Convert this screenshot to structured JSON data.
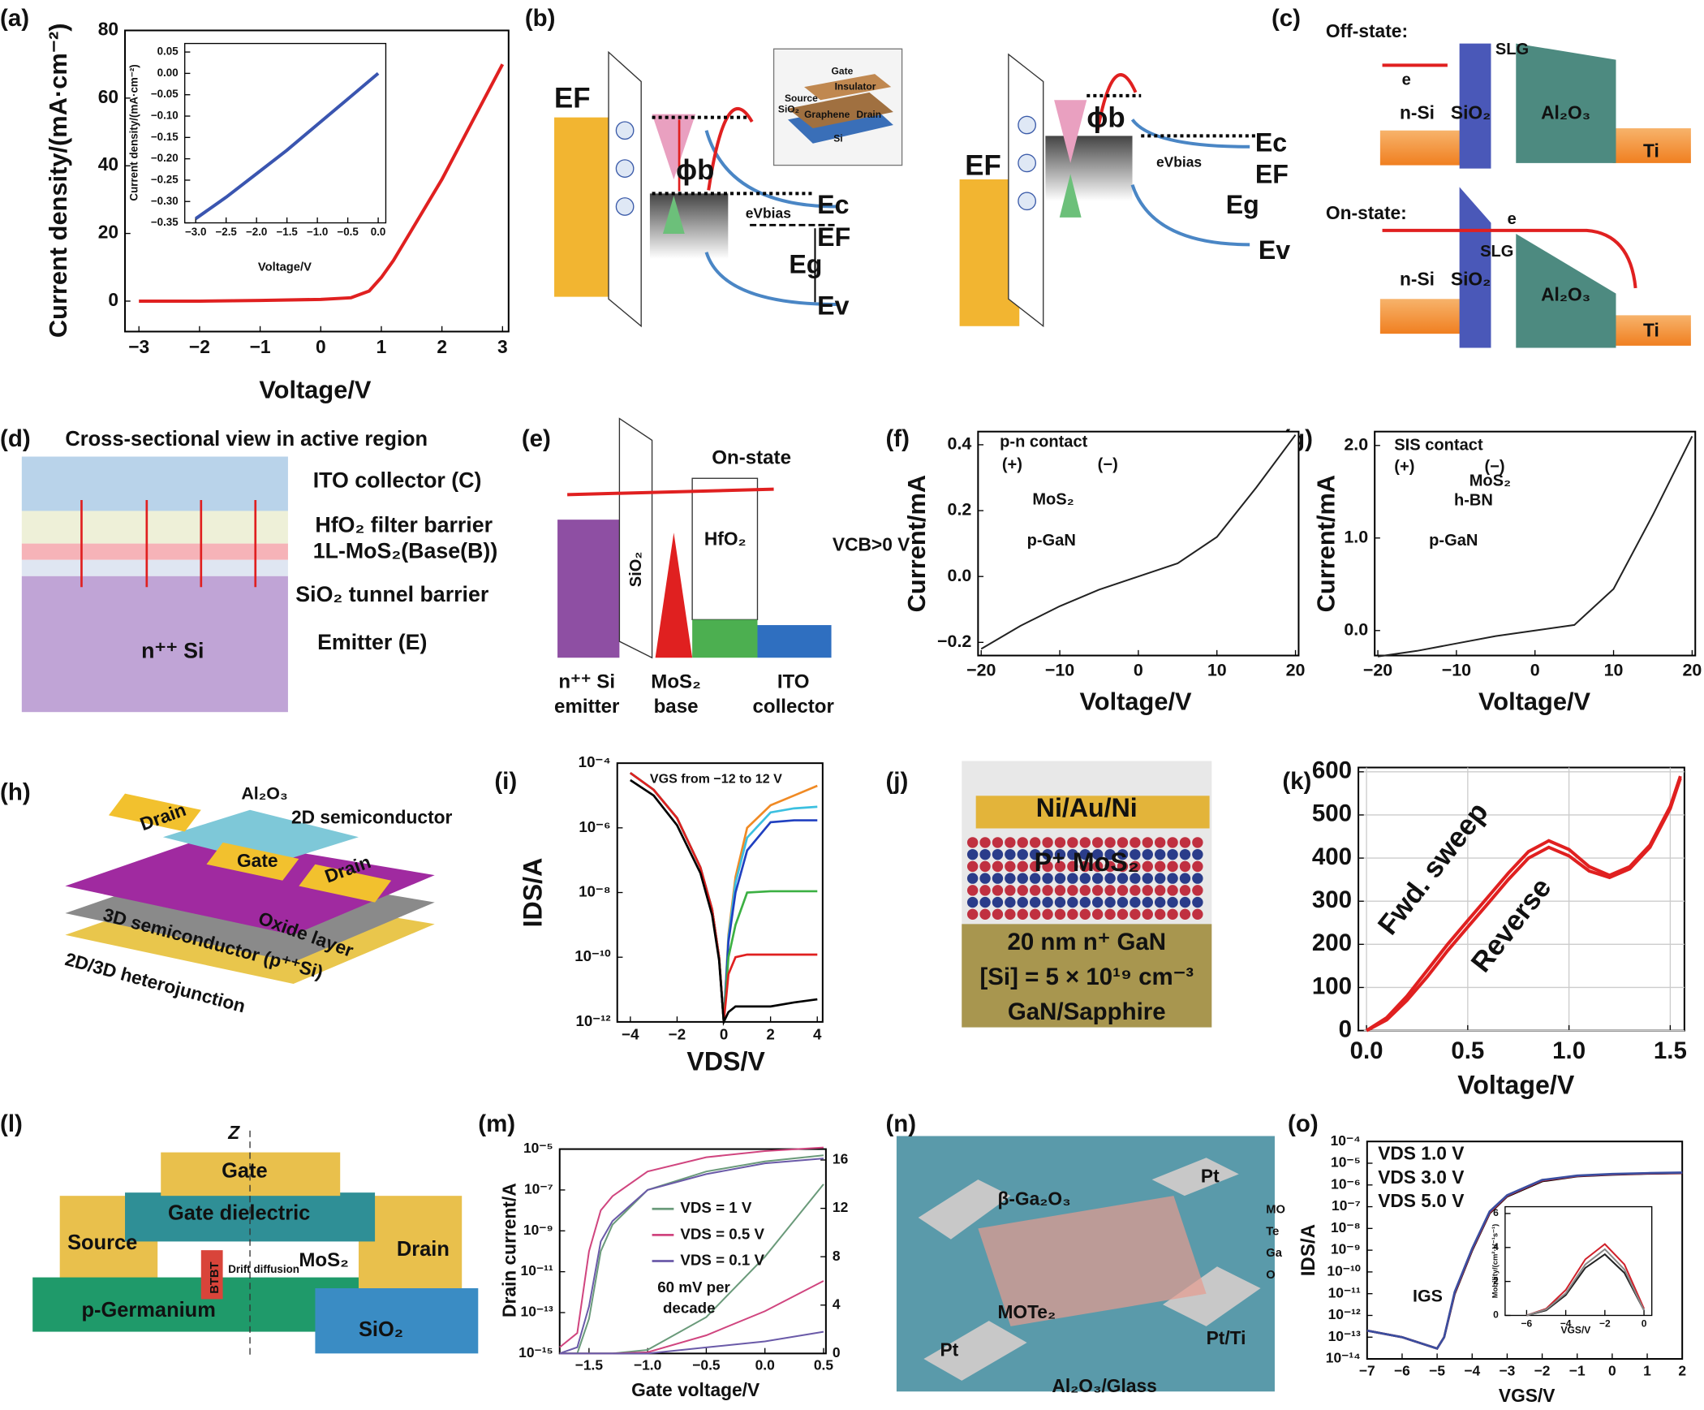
{
  "panels": [
    "(a)",
    "(b)",
    "(c)",
    "(d)",
    "(e)",
    "(f)",
    "(g)",
    "(h)",
    "(i)",
    "(j)",
    "(k)",
    "(l)",
    "(m)",
    "(n)",
    "(o)"
  ],
  "diagrams": {
    "b": [
      "EF",
      "ϕb",
      "eVbias",
      "Ec",
      "EF",
      "Eg",
      "Ev",
      "Gate",
      "Insulator",
      "Source",
      "SiO₂",
      "Graphene",
      "Drain",
      "Si",
      "EF",
      "ϕb",
      "Ec",
      "eVbias",
      "EF",
      "Eg",
      "Ev"
    ],
    "c": [
      "Off-state:",
      "e",
      "SLG",
      "n-Si",
      "SiO₂",
      "Al₂O₃",
      "Ti",
      "On-state:",
      "e",
      "SLG",
      "n-Si",
      "SiO₂",
      "Al₂O₃",
      "Ti"
    ],
    "d": [
      "Cross-sectional view in active region",
      "ITO collector (C)",
      "HfO₂ filter barrier",
      "1L-MoS₂(Base(B))",
      "SiO₂ tunnel barrier",
      "n⁺⁺ Si",
      "Emitter (E)"
    ],
    "e": [
      "On-state",
      "SiO₂",
      "HfO₂",
      "VCB>0 V",
      "n⁺⁺ Si",
      "emitter",
      "MoS₂",
      "base",
      "ITO",
      "collector"
    ],
    "h": [
      "Al₂O₃",
      "2D semiconductor",
      "Drain",
      "Gate",
      "Drain",
      "Oxide layer",
      "3D semiconductor (p⁺⁺Si)",
      "2D/3D heterojunction"
    ],
    "j": [
      "Ni/Au/Ni",
      "P⁺ MoS₂",
      "20 nm    n⁺ GaN",
      "[Si] = 5 × 10¹⁹ cm⁻³",
      "GaN/Sapphire"
    ],
    "l": [
      "Z",
      "Gate",
      "Gate dielectric",
      "Source",
      "Drain",
      "MoS₂",
      "BTBT",
      "Drift diffusion",
      "p-Germanium",
      "SiO₂"
    ],
    "n": [
      "Pt",
      "β-Ga₂O₃",
      "MO",
      "Te",
      "Ga",
      "O",
      "MOTe₂",
      "Pt",
      "Pt/Ti",
      "Al₂O₃/Glass"
    ]
  },
  "chart_data": [
    {
      "type": "line",
      "xlabel": "Voltage/V",
      "ylabel": "Current density/(mA·cm⁻²)",
      "xlim": [
        -3.23,
        3.1
      ],
      "ylim": [
        -9,
        80
      ],
      "xticks": [
        {
          "value": -3,
          "label": "−3"
        },
        {
          "value": -2,
          "label": "−2"
        },
        {
          "value": -1,
          "label": "−1"
        },
        0,
        1,
        2,
        3
      ],
      "yticks": [
        0,
        20,
        40,
        60,
        80
      ],
      "x": [
        -3,
        -2,
        -1,
        0,
        0.5,
        0.8,
        1,
        1.2,
        1.5,
        2,
        2.5,
        3
      ],
      "series": [
        {
          "color": "#e02020",
          "values": [
            0,
            0,
            0.2,
            0.5,
            1,
            3,
            7,
            12,
            21,
            36,
            53,
            70
          ]
        }
      ]
    },
    {
      "type": "line",
      "xlabel": "Voltage/V",
      "ylabel": "Current density/(mA·cm⁻²)",
      "xlim": [
        -3.18,
        0.125
      ],
      "ylim": [
        -0.35,
        0.07
      ],
      "xticks": [
        {
          "value": -3,
          "label": "−3.0"
        },
        {
          "value": -2.5,
          "label": "−2.5"
        },
        {
          "value": -2,
          "label": "−2.0"
        },
        {
          "value": -1.5,
          "label": "−1.5"
        },
        {
          "value": -1,
          "label": "−1.0"
        },
        {
          "value": -0.5,
          "label": "−0.5"
        },
        {
          "value": 0,
          "label": "0.0"
        }
      ],
      "yticks": [
        0.05,
        {
          "value": 0,
          "label": "0.00"
        },
        {
          "value": -0.05,
          "label": "−0.05"
        },
        {
          "value": -0.1,
          "label": "−0.10"
        },
        {
          "value": -0.15,
          "label": "−0.15"
        },
        {
          "value": -0.2,
          "label": "−0.20"
        },
        {
          "value": -0.25,
          "label": "−0.25"
        },
        {
          "value": -0.3,
          "label": "−0.30"
        },
        {
          "value": -0.35,
          "label": "−0.35"
        }
      ],
      "x": [
        -3,
        -2.5,
        -2,
        -1.5,
        -1,
        -0.5,
        0
      ],
      "series": [
        {
          "color": "#3a55b0",
          "values": [
            -0.34,
            -0.29,
            -0.235,
            -0.18,
            -0.12,
            -0.06,
            0
          ]
        }
      ]
    },
    {
      "type": "line",
      "xlabel": "Voltage/V",
      "ylabel": "Current/mA",
      "xlim": [
        -20.4,
        20.4
      ],
      "ylim": [
        -0.24,
        0.44
      ],
      "xticks": [
        {
          "value": -20,
          "label": "−20"
        },
        {
          "value": -10,
          "label": "−10"
        },
        0,
        10,
        20
      ],
      "yticks": [
        {
          "value": -0.2,
          "label": "−0.2"
        },
        {
          "value": 0,
          "label": "0.0"
        },
        0.2,
        0.4
      ],
      "x": [
        -20,
        -15,
        -10,
        -5,
        0,
        5,
        10,
        15,
        20
      ],
      "series": [
        {
          "color": "#222222",
          "values": [
            -0.22,
            -0.15,
            -0.09,
            -0.04,
            0,
            0.04,
            0.12,
            0.27,
            0.43
          ]
        }
      ],
      "annotations": [
        "p-n contact",
        "(+)",
        "(−)",
        "MoS₂",
        "p-GaN"
      ]
    },
    {
      "type": "line",
      "xlabel": "Voltage/V",
      "ylabel": "Current/mA",
      "xlim": [
        -20.4,
        20.4
      ],
      "ylim": [
        -0.27,
        2.15
      ],
      "xticks": [
        {
          "value": -20,
          "label": "−20"
        },
        {
          "value": -10,
          "label": "−10"
        },
        0,
        10,
        20
      ],
      "yticks": [
        {
          "value": 0,
          "label": "0.0"
        },
        {
          "value": 1,
          "label": "1.0"
        },
        {
          "value": 2,
          "label": "2.0"
        }
      ],
      "x": [
        -20,
        -15,
        -10,
        -5,
        0,
        5,
        10,
        15,
        20
      ],
      "series": [
        {
          "color": "#222222",
          "values": [
            -0.28,
            -0.22,
            -0.14,
            -0.06,
            0,
            0.06,
            0.45,
            1.25,
            2.1
          ]
        }
      ],
      "annotations": [
        "SIS contact",
        "(+)",
        "(−)",
        "MoS₂",
        "h-BN",
        "p-GaN"
      ]
    },
    {
      "type": "line",
      "xlabel": "VDS/V",
      "ylabel": "IDS/A",
      "yscale": "log",
      "xlim": [
        -4.56,
        4.23
      ],
      "ylim": [
        1e-12,
        0.0001
      ],
      "xticks": [
        {
          "value": -4,
          "label": "−4"
        },
        {
          "value": -2,
          "label": "−2"
        },
        0,
        2,
        4
      ],
      "yticks": [
        {
          "value": 1e-12,
          "label": "10⁻¹²"
        },
        {
          "value": 1e-10,
          "label": "10⁻¹⁰"
        },
        {
          "value": 1e-08,
          "label": "10⁻⁸"
        },
        {
          "value": 1e-06,
          "label": "10⁻⁶"
        },
        {
          "value": 0.0001,
          "label": "10⁻⁴"
        }
      ],
      "x": [
        -4,
        -3,
        -2,
        -1,
        -0.5,
        -0.2,
        0,
        0.2,
        0.5,
        1,
        2,
        3,
        4
      ],
      "series": [
        {
          "color": "#f08a24",
          "values": [
            5e-05,
            1.5e-05,
            2e-06,
            6e-08,
            3e-09,
            1e-10,
            1e-12,
            5e-10,
            3e-08,
            1e-06,
            5e-06,
            1e-05,
            2e-05
          ]
        },
        {
          "color": "#3cc0e0",
          "values": [
            5e-05,
            1.5e-05,
            2e-06,
            6e-08,
            3e-09,
            1e-10,
            1e-12,
            4e-10,
            2e-08,
            5e-07,
            3e-06,
            4e-06,
            4.5e-06
          ]
        },
        {
          "color": "#2040c0",
          "values": [
            5e-05,
            1.5e-05,
            2e-06,
            6e-08,
            3e-09,
            1e-10,
            1e-12,
            3e-10,
            1e-08,
            2e-07,
            1.5e-06,
            1.7e-06,
            1.7e-06
          ]
        },
        {
          "color": "#3cb043",
          "values": [
            5e-05,
            1.5e-05,
            2e-06,
            6e-08,
            3e-09,
            1e-10,
            1e-12,
            1e-10,
            1e-09,
            1e-08,
            1.1e-08,
            1.1e-08,
            1.1e-08
          ]
        },
        {
          "color": "#e02020",
          "values": [
            5e-05,
            1.5e-05,
            2e-06,
            6e-08,
            3e-09,
            1e-10,
            1e-12,
            3e-11,
            1e-10,
            1.2e-10,
            1.2e-10,
            1.2e-10,
            1.2e-10
          ]
        },
        {
          "color": "#000000",
          "values": [
            3e-05,
            1e-05,
            1.2e-06,
            4e-08,
            2e-09,
            8e-11,
            1e-12,
            2e-12,
            3e-12,
            3e-12,
            3e-12,
            4e-12,
            5e-12
          ]
        }
      ],
      "annotations": [
        "VGS from −12 to 12 V"
      ]
    },
    {
      "type": "line",
      "xlabel": "Voltage/V",
      "grid": true,
      "xlim": [
        -0.04,
        1.57
      ],
      "ylim": [
        0,
        610
      ],
      "xticks": [
        {
          "value": 0,
          "label": "0.0"
        },
        0.5,
        {
          "value": 1,
          "label": "1.0"
        },
        1.5
      ],
      "yticks": [
        0,
        100,
        200,
        300,
        400,
        500,
        600
      ],
      "x": [
        0,
        0.1,
        0.2,
        0.3,
        0.4,
        0.5,
        0.6,
        0.7,
        0.8,
        0.9,
        1.0,
        1.1,
        1.2,
        1.3,
        1.4,
        1.5,
        1.55
      ],
      "series": [
        {
          "color": "#e02020",
          "values": [
            0,
            30,
            80,
            140,
            200,
            255,
            310,
            365,
            415,
            440,
            420,
            380,
            360,
            380,
            430,
            520,
            590
          ]
        },
        {
          "color": "#e02020",
          "values": [
            0,
            25,
            70,
            125,
            185,
            240,
            295,
            350,
            400,
            425,
            405,
            370,
            355,
            375,
            425,
            515,
            585
          ]
        }
      ],
      "annotations": [
        "Fwd. sweep",
        "Reverse"
      ]
    },
    {
      "type": "line",
      "xlabel": "Gate voltage/V",
      "ylabel": "Drain current/A",
      "yscale": "log",
      "legend": "upper left",
      "xlim": [
        -1.75,
        0.52
      ],
      "ylim": [
        1e-15,
        1e-05
      ],
      "y2lim": [
        0,
        16.9
      ],
      "xticks": [
        {
          "value": -1.5,
          "label": "−1.5"
        },
        {
          "value": -1,
          "label": "−1.0"
        },
        {
          "value": -0.5,
          "label": "−0.5"
        },
        {
          "value": 0,
          "label": "0.0"
        },
        0.5
      ],
      "yticks": [
        {
          "value": 1e-15,
          "label": "10⁻¹⁵"
        },
        {
          "value": 1e-13,
          "label": "10⁻¹³"
        },
        {
          "value": 1e-11,
          "label": "10⁻¹¹"
        },
        {
          "value": 1e-09,
          "label": "10⁻⁹"
        },
        {
          "value": 1e-07,
          "label": "10⁻⁷"
        },
        {
          "value": 1e-05,
          "label": "10⁻⁵"
        }
      ],
      "y2ticks": [
        0,
        4,
        8,
        12,
        16
      ],
      "x": [
        -1.75,
        -1.6,
        -1.5,
        -1.4,
        -1.3,
        -1.0,
        -0.5,
        0.0,
        0.5
      ],
      "series": [
        {
          "name": "VDS = 1 V",
          "color": "#6a9a7a",
          "values": [
            1e-15,
            1e-15,
            5e-14,
            1e-10,
            2e-09,
            1e-07,
            8e-07,
            2.5e-06,
            5e-06
          ]
        },
        {
          "name": "VDS = 0.5 V",
          "color": "#d0457f",
          "values": [
            2e-15,
            1e-14,
            1e-10,
            1e-08,
            5e-08,
            8e-07,
            4e-06,
            8e-06,
            1.2e-05
          ]
        },
        {
          "name": "VDS = 0.1 V",
          "color": "#6a5aa8",
          "values": [
            1e-15,
            2e-15,
            2e-13,
            3e-10,
            3e-09,
            1e-07,
            6e-07,
            2e-06,
            3.5e-06
          ]
        },
        {
          "axis": "y2",
          "color": "#6a9a7a",
          "values": [
            0,
            0,
            0,
            0,
            0,
            0.3,
            3,
            8,
            14
          ]
        },
        {
          "axis": "y2",
          "color": "#d0457f",
          "values": [
            0,
            0,
            0,
            0,
            0,
            0.1,
            1.5,
            3.5,
            6
          ]
        },
        {
          "axis": "y2",
          "color": "#6a5aa8",
          "values": [
            0,
            0,
            0,
            0,
            0,
            0,
            0.5,
            1,
            1.8
          ]
        }
      ],
      "annotations": [
        "60 mV per",
        "decade"
      ]
    },
    {
      "type": "line",
      "xlabel": "VGS/V",
      "ylabel": "IDS/A",
      "yscale": "log",
      "legend": "upper left",
      "xlim": [
        -7,
        2
      ],
      "ylim": [
        1e-14,
        0.0001
      ],
      "xticks": [
        {
          "value": -7,
          "label": "−7"
        },
        {
          "value": -6,
          "label": "−6"
        },
        {
          "value": -5,
          "label": "−5"
        },
        {
          "value": -4,
          "label": "−4"
        },
        {
          "value": -3,
          "label": "−3"
        },
        {
          "value": -2,
          "label": "−2"
        },
        {
          "value": -1,
          "label": "−1"
        },
        0,
        1,
        2
      ],
      "yticks": [
        {
          "value": 1e-14,
          "label": "10⁻¹⁴"
        },
        {
          "value": 1e-13,
          "label": "10⁻¹³"
        },
        {
          "value": 1e-12,
          "label": "10⁻¹²"
        },
        {
          "value": 1e-11,
          "label": "10⁻¹¹"
        },
        {
          "value": 1e-10,
          "label": "10⁻¹⁰"
        },
        {
          "value": 1e-09,
          "label": "10⁻⁹"
        },
        {
          "value": 1e-08,
          "label": "10⁻⁸"
        },
        {
          "value": 1e-07,
          "label": "10⁻⁷"
        },
        {
          "value": 1e-06,
          "label": "10⁻⁶"
        },
        {
          "value": 1e-05,
          "label": "10⁻⁵"
        },
        {
          "value": 0.0001,
          "label": "10⁻⁴"
        }
      ],
      "x": [
        -7,
        -6,
        -5,
        -4.8,
        -4.5,
        -4,
        -3.5,
        -3,
        -2,
        -1,
        0,
        1,
        2
      ],
      "series": [
        {
          "name": "VDS 1.0 V",
          "color": "#000000",
          "values": [
            2e-13,
            1e-13,
            3e-14,
            1e-13,
            1e-11,
            1e-09,
            5e-08,
            3e-07,
            1.5e-06,
            2.5e-06,
            3e-06,
            3.3e-06,
            3.5e-06
          ]
        },
        {
          "name": "VDS 3.0 V",
          "color": "#d0202a",
          "values": [
            2e-13,
            1e-13,
            3e-14,
            1e-13,
            1.1e-11,
            1.1e-09,
            5.5e-08,
            3.2e-07,
            1.6e-06,
            2.6e-06,
            3.1e-06,
            3.4e-06,
            3.6e-06
          ]
        },
        {
          "name": "VDS 5.0 V",
          "color": "#3a4ea0",
          "values": [
            2e-13,
            1e-13,
            3e-14,
            1e-13,
            1.2e-11,
            1.2e-09,
            6e-08,
            3.4e-07,
            1.7e-06,
            2.7e-06,
            3.2e-06,
            3.5e-06,
            3.7e-06
          ]
        }
      ],
      "annotations": [
        "IGS"
      ]
    },
    {
      "type": "line",
      "xlabel": "VGS/V",
      "ylabel": "Mobility/(cm²·V⁻¹s⁻¹)",
      "xlim": [
        -7.1,
        0.4
      ],
      "ylim": [
        0,
        6.4
      ],
      "xticks": [
        {
          "value": -6,
          "label": "−6"
        },
        {
          "value": -4,
          "label": "−4"
        },
        {
          "value": -2,
          "label": "−2"
        },
        0
      ],
      "yticks": [
        0,
        2,
        4,
        6
      ],
      "x": [
        -6,
        -5,
        -4,
        -3,
        -2,
        -1,
        0
      ],
      "series": [
        {
          "color": "#222222",
          "values": [
            0,
            0.3,
            1.2,
            2.8,
            3.6,
            2.5,
            0.3
          ]
        },
        {
          "color": "#d0202a",
          "values": [
            0,
            0.4,
            1.5,
            3.3,
            4.2,
            3,
            0.4
          ]
        },
        {
          "color": "#888888",
          "values": [
            0,
            0.35,
            1.3,
            3,
            3.9,
            2.7,
            0.3
          ]
        }
      ]
    }
  ]
}
